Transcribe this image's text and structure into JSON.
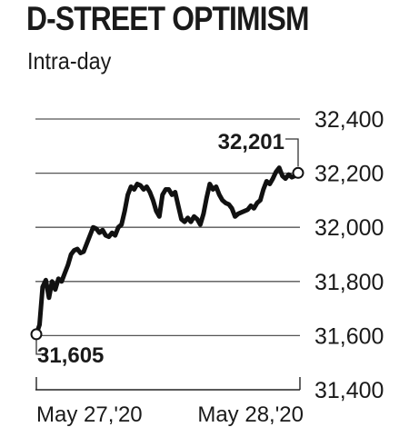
{
  "header": {
    "title": "D-STREET OPTIMISM",
    "subtitle": "Intra-day"
  },
  "chart_data": {
    "type": "line",
    "title": "D-STREET OPTIMISM",
    "subtitle": "Intra-day",
    "y_ticks": [
      "32,400",
      "32,200",
      "32,000",
      "31,800",
      "31,600",
      "31,400"
    ],
    "y_tick_values": [
      32400,
      32200,
      32000,
      31800,
      31600,
      31400
    ],
    "ylim": [
      31400,
      32400
    ],
    "x_ticks": [
      "May 27,'20",
      "May 28,'20"
    ],
    "grid": true,
    "series": [
      {
        "values": [
          31605,
          31640,
          31780,
          31805,
          31740,
          31800,
          31770,
          31810,
          31800,
          31830,
          31860,
          31900,
          31915,
          31920,
          31905,
          31910,
          31940,
          31970,
          32000,
          31995,
          31980,
          31990,
          31970,
          31965,
          31980,
          31970,
          32000,
          32010,
          32060,
          32120,
          32150,
          32140,
          32160,
          32155,
          32140,
          32150,
          32130,
          32100,
          32060,
          32040,
          32120,
          32140,
          32140,
          32120,
          32130,
          32080,
          32030,
          32020,
          32035,
          32020,
          32040,
          32030,
          32010,
          32050,
          32110,
          32160,
          32140,
          32150,
          32120,
          32100,
          32090,
          32085,
          32070,
          32040,
          32050,
          32055,
          32060,
          32065,
          32080,
          32070,
          32090,
          32100,
          32140,
          32170,
          32160,
          32180,
          32205,
          32220,
          32190,
          32180,
          32195,
          32185,
          32190,
          32201
        ]
      }
    ],
    "annotations": [
      {
        "label": "31,605",
        "value": 31605,
        "position": "start"
      },
      {
        "label": "32,201",
        "value": 32201,
        "position": "end"
      }
    ],
    "colors": {
      "line": "#111111",
      "grid": "#555555",
      "text": "#1a1a1a"
    }
  }
}
